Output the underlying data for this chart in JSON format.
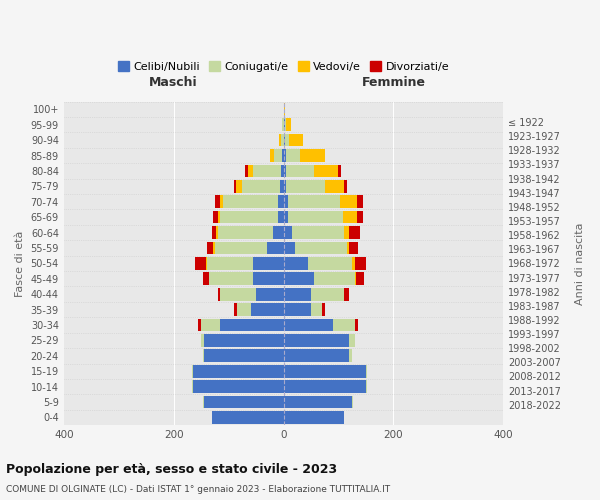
{
  "age_groups": [
    "0-4",
    "5-9",
    "10-14",
    "15-19",
    "20-24",
    "25-29",
    "30-34",
    "35-39",
    "40-44",
    "45-49",
    "50-54",
    "55-59",
    "60-64",
    "65-69",
    "70-74",
    "75-79",
    "80-84",
    "85-89",
    "90-94",
    "95-99",
    "100+"
  ],
  "birth_years": [
    "2018-2022",
    "2013-2017",
    "2008-2012",
    "2003-2007",
    "1998-2002",
    "1993-1997",
    "1988-1992",
    "1983-1987",
    "1978-1982",
    "1973-1977",
    "1968-1972",
    "1963-1967",
    "1958-1962",
    "1953-1957",
    "1948-1952",
    "1943-1947",
    "1938-1942",
    "1933-1937",
    "1928-1932",
    "1923-1927",
    "≤ 1922"
  ],
  "colors": {
    "celibi": "#4472c4",
    "coniugati": "#c5d9a0",
    "vedovi": "#ffc000",
    "divorziati": "#cc0000"
  },
  "maschi": {
    "celibi": [
      130,
      145,
      165,
      165,
      145,
      145,
      115,
      60,
      50,
      55,
      55,
      30,
      20,
      10,
      10,
      6,
      5,
      2,
      0,
      0,
      0
    ],
    "coniugati": [
      0,
      2,
      2,
      2,
      2,
      5,
      35,
      25,
      65,
      80,
      85,
      95,
      100,
      105,
      100,
      70,
      50,
      15,
      5,
      2,
      0
    ],
    "vedovi": [
      0,
      0,
      0,
      0,
      0,
      0,
      0,
      0,
      0,
      0,
      2,
      3,
      3,
      5,
      5,
      10,
      10,
      8,
      3,
      0,
      0
    ],
    "divorziati": [
      0,
      0,
      0,
      0,
      0,
      0,
      5,
      5,
      5,
      12,
      20,
      12,
      8,
      8,
      10,
      5,
      5,
      0,
      0,
      0,
      0
    ]
  },
  "femmine": {
    "celibi": [
      110,
      125,
      150,
      150,
      120,
      120,
      90,
      50,
      50,
      55,
      45,
      20,
      15,
      8,
      8,
      5,
      5,
      5,
      2,
      2,
      0
    ],
    "coniugati": [
      0,
      2,
      2,
      2,
      5,
      10,
      40,
      20,
      60,
      75,
      80,
      95,
      95,
      100,
      95,
      70,
      50,
      25,
      8,
      2,
      0
    ],
    "vedovi": [
      0,
      0,
      0,
      0,
      0,
      0,
      0,
      0,
      0,
      2,
      5,
      5,
      10,
      25,
      30,
      35,
      45,
      45,
      25,
      10,
      2
    ],
    "divorziati": [
      0,
      0,
      0,
      0,
      0,
      0,
      5,
      5,
      10,
      15,
      20,
      15,
      20,
      12,
      12,
      5,
      5,
      0,
      0,
      0,
      0
    ]
  },
  "xlim": 400,
  "title": "Popolazione per età, sesso e stato civile - 2023",
  "subtitle": "COMUNE DI OLGINATE (LC) - Dati ISTAT 1° gennaio 2023 - Elaborazione TUTTITALIA.IT",
  "ylabel_left": "Fasce di età",
  "ylabel_right": "Anni di nascita",
  "xlabel_left": "Maschi",
  "xlabel_right": "Femmine"
}
